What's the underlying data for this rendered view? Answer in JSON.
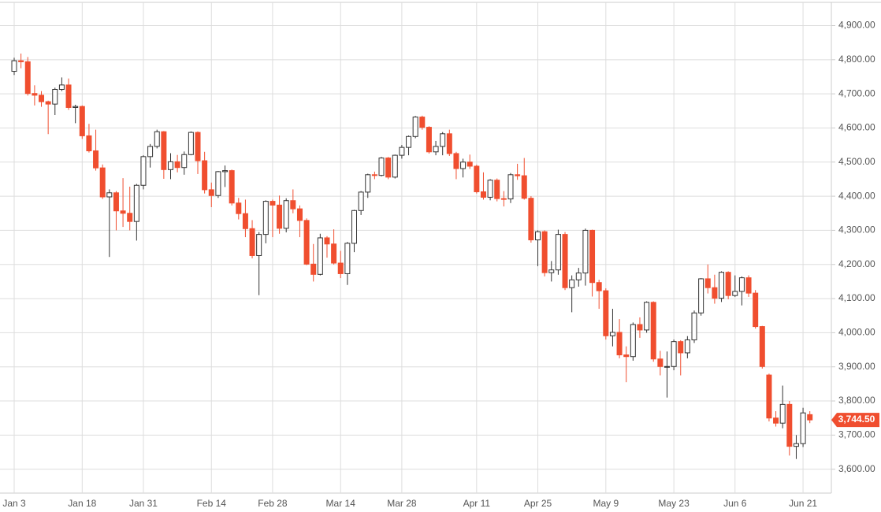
{
  "chart_data": {
    "type": "candlestick",
    "categories": [
      "Jan 3",
      null,
      null,
      null,
      null,
      null,
      null,
      null,
      null,
      null,
      "Jan 18",
      null,
      null,
      null,
      null,
      null,
      null,
      null,
      null,
      "Jan 31",
      null,
      null,
      null,
      null,
      null,
      null,
      null,
      null,
      null,
      "Feb 14",
      null,
      null,
      null,
      null,
      null,
      null,
      null,
      null,
      "Feb 28",
      null,
      null,
      null,
      null,
      null,
      null,
      null,
      null,
      null,
      "Mar 14",
      null,
      null,
      null,
      null,
      null,
      null,
      null,
      null,
      "Mar 28",
      null,
      null,
      null,
      null,
      null,
      null,
      null,
      null,
      null,
      null,
      "Apr 11",
      null,
      null,
      null,
      null,
      null,
      null,
      null,
      null,
      "Apr 25",
      null,
      null,
      null,
      null,
      null,
      null,
      null,
      null,
      null,
      "May 9",
      null,
      null,
      null,
      null,
      null,
      null,
      null,
      null,
      null,
      "May 23",
      null,
      null,
      null,
      null,
      null,
      null,
      null,
      null,
      "Jun 6",
      null,
      null,
      null,
      null,
      null,
      null,
      null,
      null,
      null,
      "Jun 21",
      null
    ],
    "open": [
      4766,
      4797,
      4794,
      4701,
      4696,
      4677,
      4670,
      4713,
      4726,
      4660,
      4663,
      4577,
      4533,
      4483,
      4398,
      4410,
      4357,
      4350,
      4326,
      4432,
      4516,
      4546,
      4589,
      4478,
      4501,
      4484,
      4522,
      4587,
      4504,
      4419,
      4402,
      4472,
      4475,
      4380,
      4349,
      4305,
      4226,
      4288,
      4385,
      4374,
      4306,
      4387,
      4363,
      4329,
      4201,
      4171,
      4278,
      4260,
      4204,
      4173,
      4262,
      4358,
      4412,
      4463,
      4461,
      4512,
      4456,
      4520,
      4543,
      4575,
      4632,
      4602,
      4530,
      4546,
      4583,
      4525,
      4481,
      4500,
      4488,
      4413,
      4397,
      4447,
      4393,
      4392,
      4463,
      4460,
      4394,
      4272,
      4296,
      4176,
      4184,
      4288,
      4132,
      4155,
      4175,
      4300,
      4147,
      4123,
      3991,
      4001,
      3935,
      3930,
      4024,
      4008,
      4089,
      3923,
      3901,
      3901,
      3974,
      3941,
      3979,
      4058,
      4158,
      4132,
      4101,
      4177,
      4109,
      4121,
      4161,
      4116,
      4018,
      3876,
      3750,
      3735,
      3790,
      3667,
      3675,
      3760
    ],
    "high": [
      4806,
      4818,
      4808,
      4725,
      4708,
      4680,
      4718,
      4748,
      4745,
      4668,
      4666,
      4612,
      4595,
      4493,
      4420,
      4415,
      4453,
      4428,
      4436,
      4520,
      4553,
      4595,
      4591,
      4526,
      4521,
      4531,
      4590,
      4590,
      4530,
      4440,
      4474,
      4490,
      4478,
      4395,
      4390,
      4330,
      4295,
      4388,
      4390,
      4402,
      4394,
      4420,
      4373,
      4335,
      4260,
      4290,
      4283,
      4303,
      4240,
      4266,
      4360,
      4415,
      4466,
      4472,
      4515,
      4515,
      4522,
      4550,
      4578,
      4635,
      4636,
      4605,
      4562,
      4588,
      4595,
      4530,
      4510,
      4522,
      4492,
      4470,
      4450,
      4452,
      4415,
      4468,
      4495,
      4512,
      4400,
      4300,
      4300,
      4210,
      4302,
      4295,
      4168,
      4190,
      4305,
      4302,
      4155,
      4130,
      4070,
      4040,
      3960,
      4030,
      4045,
      4092,
      4092,
      3947,
      3945,
      3980,
      3978,
      3990,
      4065,
      4160,
      4200,
      4170,
      4180,
      4180,
      4168,
      4165,
      4168,
      4125,
      4020,
      3880,
      3770,
      3845,
      3800,
      3700,
      3780,
      3770
    ],
    "low": [
      4755,
      4775,
      4695,
      4666,
      4662,
      4582,
      4638,
      4708,
      4653,
      4614,
      4568,
      4528,
      4475,
      4392,
      4222,
      4300,
      4310,
      4300,
      4270,
      4420,
      4484,
      4540,
      4451,
      4450,
      4470,
      4463,
      4520,
      4465,
      4408,
      4368,
      4395,
      4427,
      4373,
      4332,
      4280,
      4218,
      4110,
      4262,
      4280,
      4290,
      4294,
      4350,
      4280,
      4198,
      4150,
      4168,
      4220,
      4200,
      4160,
      4140,
      4236,
      4345,
      4395,
      4450,
      4458,
      4450,
      4452,
      4510,
      4520,
      4570,
      4595,
      4525,
      4520,
      4520,
      4518,
      4450,
      4455,
      4480,
      4408,
      4390,
      4388,
      4385,
      4370,
      4380,
      4448,
      4390,
      4264,
      4195,
      4165,
      4150,
      4170,
      4125,
      4060,
      4135,
      4138,
      4106,
      4070,
      3980,
      3960,
      3925,
      3855,
      3918,
      3985,
      4000,
      3915,
      3875,
      3810,
      3890,
      3875,
      3925,
      3970,
      4050,
      4115,
      4085,
      4090,
      4098,
      4105,
      4080,
      4105,
      4012,
      3895,
      3740,
      3725,
      3720,
      3640,
      3630,
      3665,
      3735
    ],
    "close": [
      4797,
      4794,
      4701,
      4696,
      4677,
      4670,
      4713,
      4726,
      4660,
      4663,
      4577,
      4533,
      4483,
      4398,
      4410,
      4357,
      4350,
      4326,
      4432,
      4516,
      4546,
      4589,
      4478,
      4501,
      4484,
      4522,
      4587,
      4504,
      4419,
      4402,
      4472,
      4475,
      4380,
      4349,
      4305,
      4226,
      4288,
      4385,
      4374,
      4306,
      4387,
      4363,
      4329,
      4201,
      4171,
      4278,
      4260,
      4204,
      4173,
      4262,
      4358,
      4412,
      4463,
      4461,
      4512,
      4456,
      4520,
      4543,
      4575,
      4632,
      4602,
      4530,
      4546,
      4583,
      4525,
      4481,
      4500,
      4488,
      4413,
      4397,
      4447,
      4393,
      4392,
      4463,
      4460,
      4394,
      4272,
      4296,
      4176,
      4184,
      4288,
      4132,
      4155,
      4175,
      4300,
      4147,
      4123,
      3991,
      4001,
      3935,
      3930,
      4024,
      4008,
      4089,
      3923,
      3901,
      3901,
      3974,
      3941,
      3979,
      4058,
      4158,
      4132,
      4101,
      4177,
      4109,
      4121,
      4161,
      4116,
      4018,
      3901,
      3750,
      3735,
      3790,
      3667,
      3675,
      3765,
      3744.5
    ],
    "up_color": "#ffffff",
    "down_color": "#f04e2f",
    "outline_color": "#333333",
    "ylim": [
      3530,
      4975
    ],
    "yticks": [
      {
        "value": 3600,
        "label": "3,600.00"
      },
      {
        "value": 3700,
        "label": "3,700.00"
      },
      {
        "value": 3800,
        "label": "3,800.00"
      },
      {
        "value": 3900,
        "label": "3,900.00"
      },
      {
        "value": 4000,
        "label": "4,000.00"
      },
      {
        "value": 4100,
        "label": "4,100.00"
      },
      {
        "value": 4200,
        "label": "4,200.00"
      },
      {
        "value": 4300,
        "label": "4,300.00"
      },
      {
        "value": 4400,
        "label": "4,400.00"
      },
      {
        "value": 4500,
        "label": "4,500.00"
      },
      {
        "value": 4600,
        "label": "4,600.00"
      },
      {
        "value": 4700,
        "label": "4,700.00"
      },
      {
        "value": 4800,
        "label": "4,800.00"
      },
      {
        "value": 4900,
        "label": "4,900.00"
      }
    ],
    "grid": true,
    "last": {
      "value": 3744.5,
      "label": "3,744.50"
    }
  }
}
